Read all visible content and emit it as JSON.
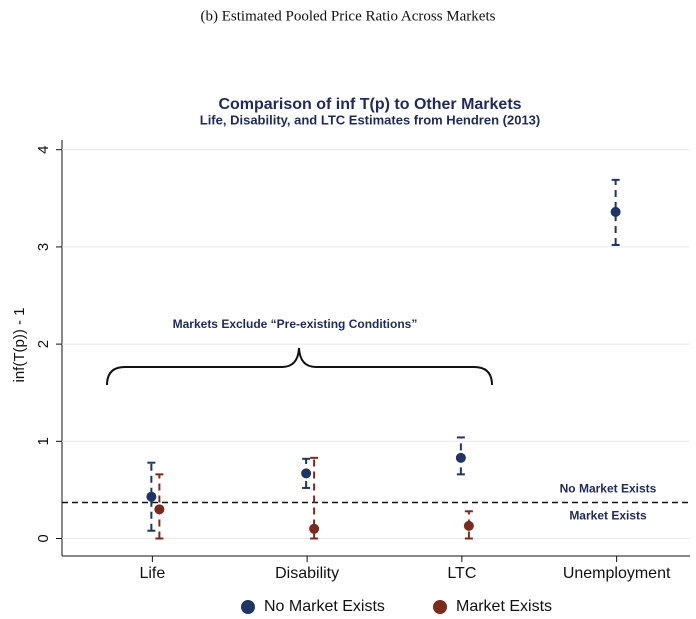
{
  "caption": "(b) Estimated Pooled Price Ratio Across Markets",
  "chart_data": {
    "type": "scatter",
    "title": "Comparison of inf T(p) to Other Markets",
    "subtitle": "Life, Disability, and LTC Estimates from Hendren (2013)",
    "y_label": "inf(T(p)) - 1",
    "categories": [
      "Life",
      "Disability",
      "LTC",
      "Unemployment"
    ],
    "series": [
      {
        "name": "No Market Exists",
        "color": "#1f3563",
        "values": [
          0.43,
          0.67,
          0.83,
          3.36
        ],
        "lower": [
          0.08,
          0.52,
          0.66,
          3.02
        ],
        "upper": [
          0.78,
          0.82,
          1.04,
          3.69
        ]
      },
      {
        "name": "Market Exists",
        "color": "#7b2a1f",
        "values": [
          0.3,
          0.1,
          0.13,
          null
        ],
        "lower": [
          0.0,
          0.0,
          0.0,
          null
        ],
        "upper": [
          0.66,
          0.83,
          0.28,
          null
        ]
      }
    ],
    "ylim": [
      -0.18,
      4.1
    ],
    "yticks": [
      0,
      1,
      2,
      3,
      4
    ],
    "grid": true,
    "hline": 0.37,
    "hline_labels": [
      "No Market Exists",
      "Market Exists"
    ],
    "annotation": "Markets Exclude “Pre-existing Conditions”",
    "legend": "bottom"
  }
}
